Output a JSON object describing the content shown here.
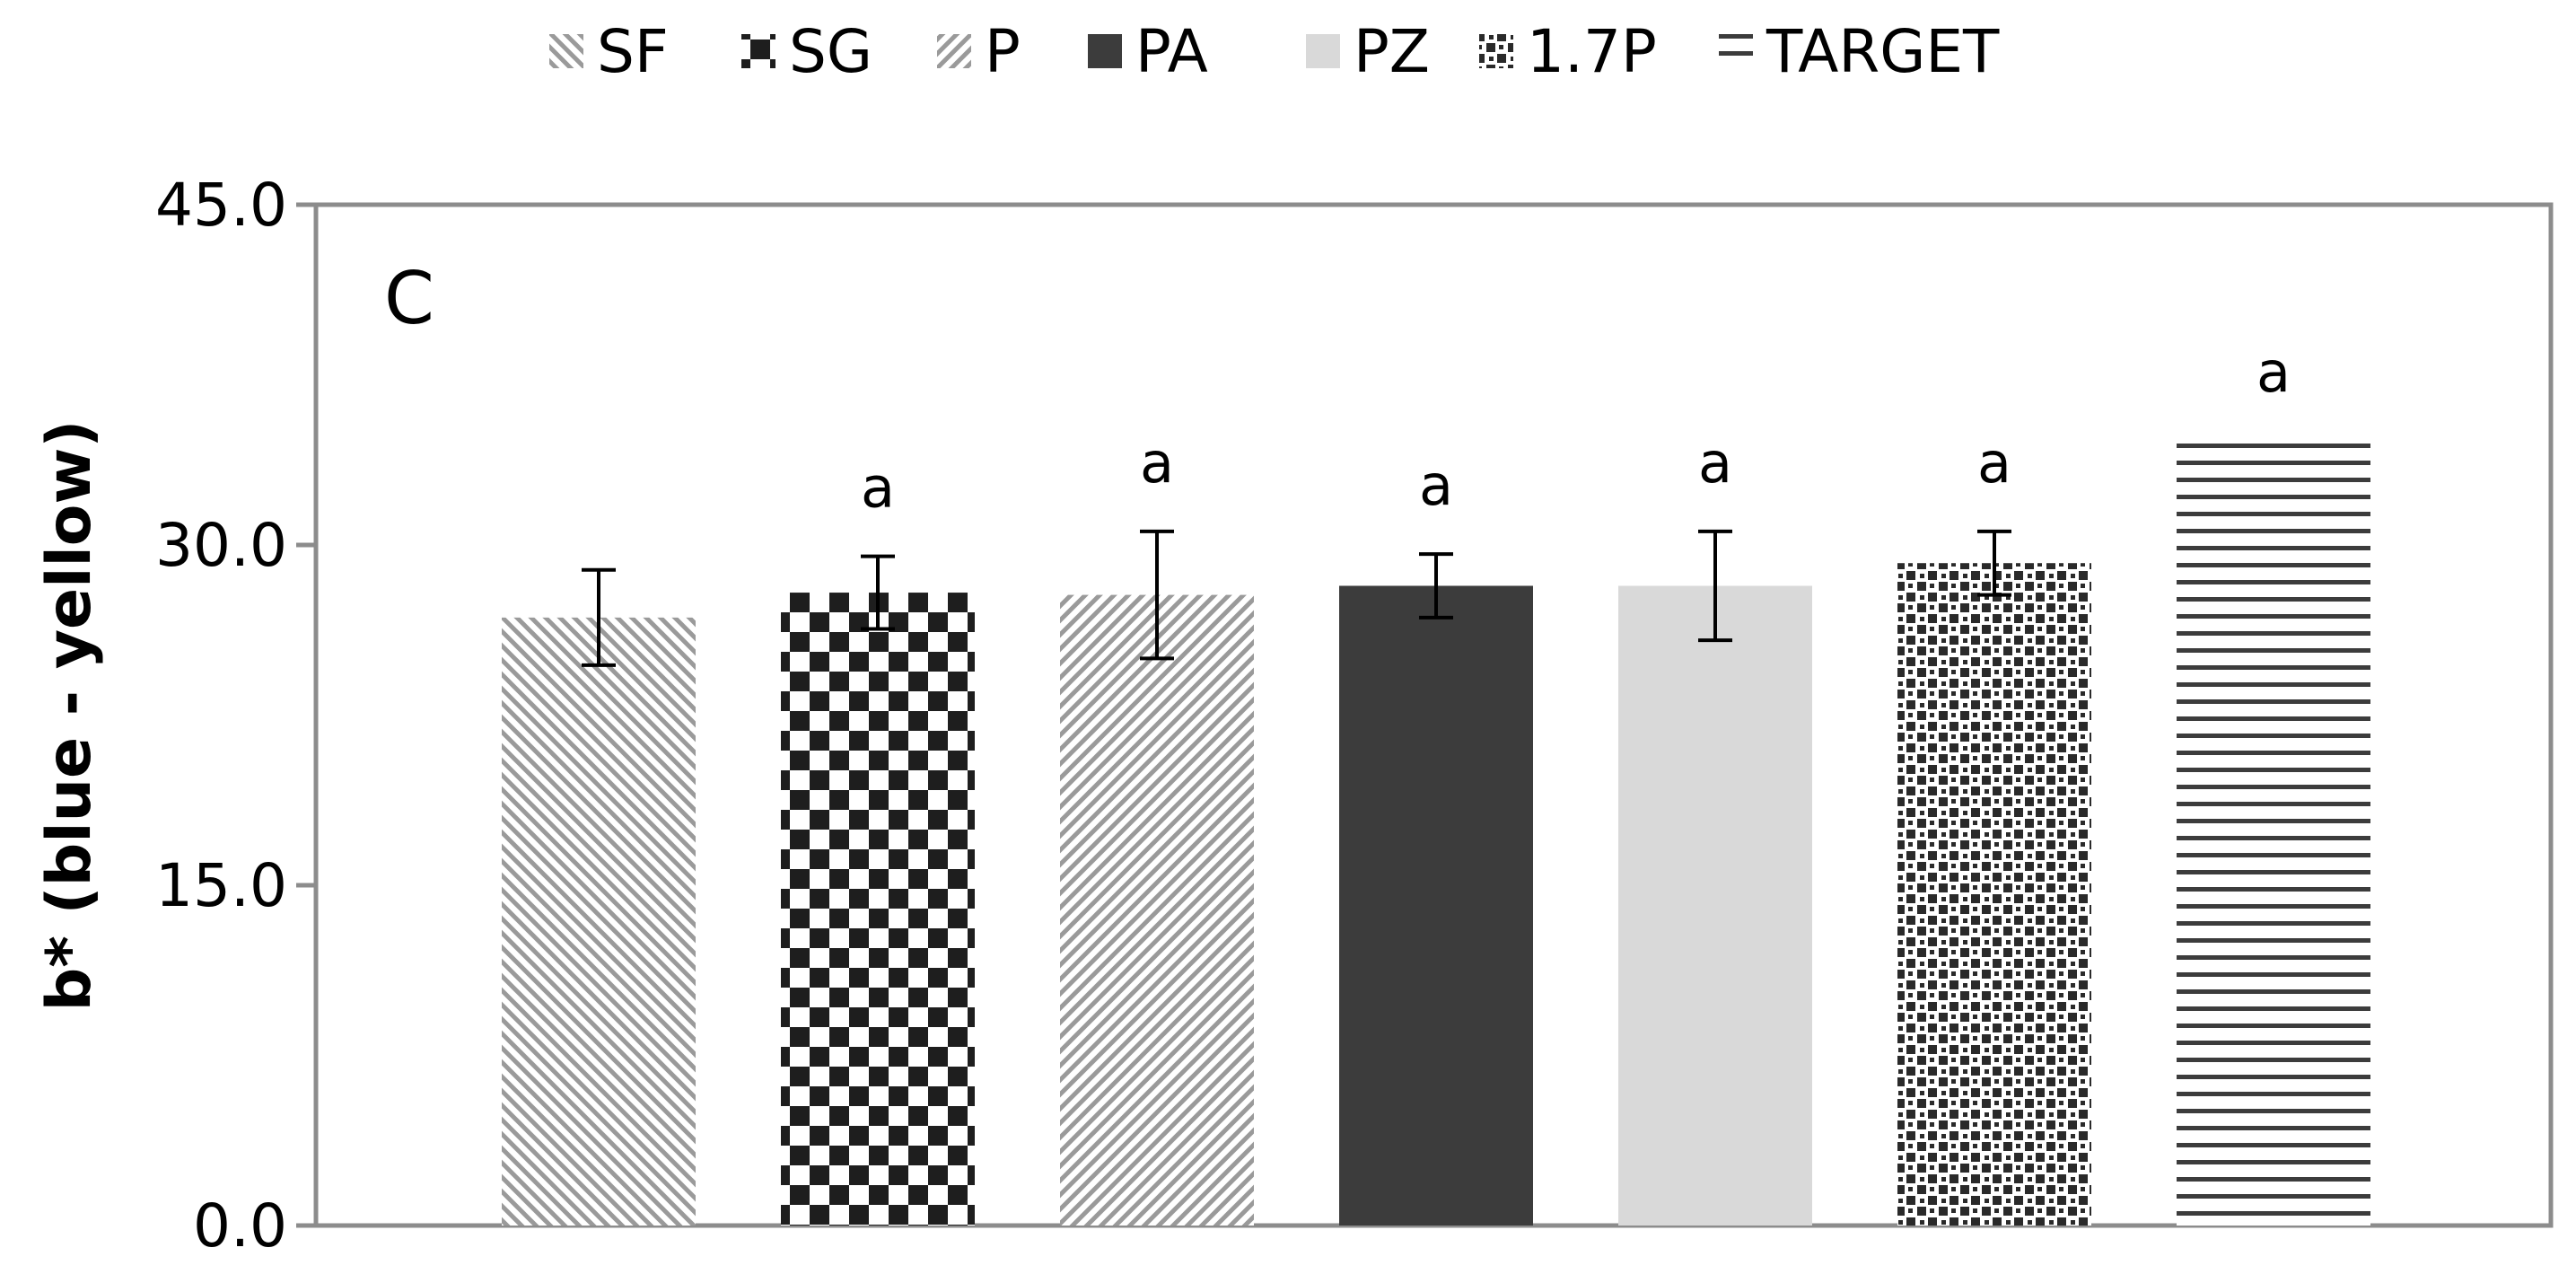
{
  "chart_data": {
    "type": "bar",
    "panel_label": "C",
    "ylabel": "b* (blue - yellow)",
    "xlabel": "",
    "ylim": [
      0,
      45
    ],
    "yticks": [
      "0.0",
      "15.0",
      "30.0",
      "45.0"
    ],
    "ytick_values": [
      0,
      15,
      30,
      45
    ],
    "grid": false,
    "legend_position": "top",
    "categories": [
      "SF",
      "SG",
      "P",
      "PA",
      "PZ",
      "1.7P",
      "TARGET"
    ],
    "series": [
      {
        "name": "SF",
        "value": 26.8,
        "error": 2.1,
        "significance": "",
        "fill": "diag-back",
        "color": "#9a9a9a"
      },
      {
        "name": "SG",
        "value": 27.9,
        "error": 1.6,
        "significance": "a",
        "fill": "checker",
        "color": "#1e1e1e"
      },
      {
        "name": "P",
        "value": 27.8,
        "error": 2.8,
        "significance": "a",
        "fill": "diag-fwd",
        "color": "#9a9a9a"
      },
      {
        "name": "PA",
        "value": 28.2,
        "error": 1.4,
        "significance": "a",
        "fill": "solid",
        "color": "#3c3c3c"
      },
      {
        "name": "PZ",
        "value": 28.2,
        "error": 2.4,
        "significance": "a",
        "fill": "solid",
        "color": "#d9d9d9"
      },
      {
        "name": "1.7P",
        "value": 29.2,
        "error": 1.4,
        "significance": "a",
        "fill": "dots",
        "color": "#2a2a2a"
      },
      {
        "name": "TARGET",
        "value": 34.6,
        "error": 0,
        "significance": "a",
        "fill": "hlines",
        "color": "#3c3c3c"
      }
    ]
  }
}
